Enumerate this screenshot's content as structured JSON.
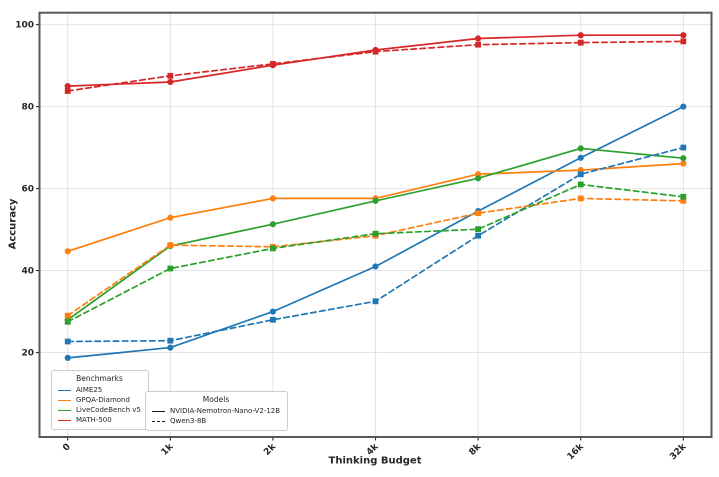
{
  "figure": {
    "background": "#ffffff",
    "frame_color": "#585858",
    "grid_color": "#e4e4e4",
    "tick_color": "#262626",
    "text_color": "#262626"
  },
  "chart_data": {
    "type": "line",
    "title": "",
    "xlabel": "Thinking Budget",
    "ylabel": "Accuracy",
    "x_ticks": [
      "0",
      "1k",
      "2k",
      "4k",
      "8k",
      "16k",
      "32k"
    ],
    "y_ticks": [
      20,
      40,
      60,
      80,
      100
    ],
    "ylim": [
      -0.6,
      102.9
    ],
    "grid": true,
    "series": [
      {
        "benchmark": "AIME25",
        "model": "NVIDIA-Nemotron-Nano-V2-12B",
        "color": "#1f77b4",
        "style": "solid",
        "marker": "circle",
        "values": [
          18.7,
          21.2,
          30.0,
          41.0,
          54.5,
          67.5,
          80.0
        ]
      },
      {
        "benchmark": "GPQA-Diamond",
        "model": "NVIDIA-Nemotron-Nano-V2-12B",
        "color": "#ff7f0e",
        "style": "solid",
        "marker": "circle",
        "values": [
          44.7,
          52.9,
          57.6,
          57.6,
          63.5,
          64.5,
          66.1
        ]
      },
      {
        "benchmark": "LiveCodeBench v5",
        "model": "NVIDIA-Nemotron-Nano-V2-12B",
        "color": "#2ca02c",
        "style": "solid",
        "marker": "circle",
        "values": [
          28.0,
          46.0,
          51.3,
          57.0,
          62.5,
          69.8,
          67.4
        ]
      },
      {
        "benchmark": "MATH-500",
        "model": "NVIDIA-Nemotron-Nano-V2-12B",
        "color": "#d62728",
        "style": "solid",
        "marker": "circle",
        "values": [
          85.0,
          86.0,
          90.1,
          93.8,
          96.6,
          97.4,
          97.4
        ]
      },
      {
        "benchmark": "AIME25",
        "model": "Qwen3-8B",
        "color": "#1f77b4",
        "style": "dashed",
        "marker": "square",
        "values": [
          22.7,
          22.9,
          28.0,
          32.5,
          48.5,
          63.5,
          70.0
        ]
      },
      {
        "benchmark": "GPQA-Diamond",
        "model": "Qwen3-8B",
        "color": "#ff7f0e",
        "style": "dashed",
        "marker": "square",
        "values": [
          29.0,
          46.2,
          45.8,
          48.5,
          54.0,
          57.6,
          57.0
        ]
      },
      {
        "benchmark": "LiveCodeBench v5",
        "model": "Qwen3-8B",
        "color": "#2ca02c",
        "style": "dashed",
        "marker": "square",
        "values": [
          27.5,
          40.5,
          45.4,
          49.0,
          50.1,
          61.0,
          58.0
        ]
      },
      {
        "benchmark": "MATH-500",
        "model": "Qwen3-8B",
        "color": "#d62728",
        "style": "dashed",
        "marker": "square",
        "values": [
          83.8,
          87.5,
          90.4,
          93.4,
          95.1,
          95.6,
          95.9
        ]
      }
    ],
    "legends": {
      "benchmarks": {
        "title": "Benchmarks",
        "items": [
          {
            "label": "AIME25",
            "color": "#1f77b4"
          },
          {
            "label": "GPQA-Diamond",
            "color": "#ff7f0e"
          },
          {
            "label": "LiveCodeBench v5",
            "color": "#2ca02c"
          },
          {
            "label": "MATH-500",
            "color": "#d62728"
          }
        ]
      },
      "models": {
        "title": "Models",
        "items": [
          {
            "label": "NVIDIA-Nemotron-Nano-V2-12B",
            "style": "solid",
            "color": "#1a1a1a"
          },
          {
            "label": "Qwen3-8B",
            "style": "dashed",
            "color": "#1a1a1a"
          }
        ]
      }
    }
  }
}
